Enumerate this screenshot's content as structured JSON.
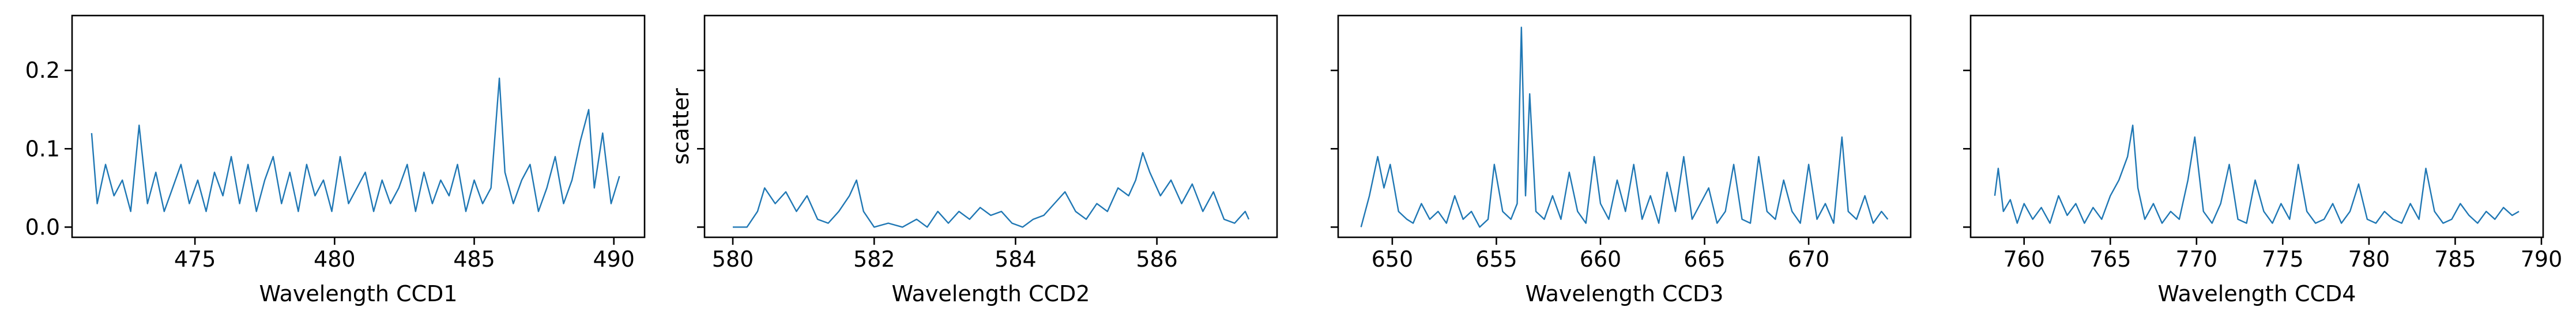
{
  "chart_data": [
    {
      "type": "line",
      "xlabel": "Wavelength CCD1",
      "ylabel": "",
      "xlim": [
        470.6,
        491.1
      ],
      "ylim": [
        -0.013,
        0.27
      ],
      "xticks": [
        475,
        480,
        485,
        490
      ],
      "yticks": [
        0.0,
        0.1,
        0.2
      ],
      "ytick_labels": [
        "0.0",
        "0.1",
        "0.2"
      ],
      "grid": false,
      "series": [
        {
          "color": "#1f77b4",
          "x": [
            471.3,
            471.5,
            471.8,
            472.1,
            472.4,
            472.7,
            473.0,
            473.3,
            473.6,
            473.9,
            474.2,
            474.5,
            474.8,
            475.1,
            475.4,
            475.7,
            476.0,
            476.3,
            476.6,
            476.9,
            477.2,
            477.5,
            477.8,
            478.1,
            478.4,
            478.7,
            479.0,
            479.3,
            479.6,
            479.9,
            480.2,
            480.5,
            480.8,
            481.1,
            481.4,
            481.7,
            482.0,
            482.3,
            482.6,
            482.9,
            483.2,
            483.5,
            483.8,
            484.1,
            484.4,
            484.7,
            485.0,
            485.3,
            485.6,
            485.9,
            486.1,
            486.4,
            486.7,
            487.0,
            487.3,
            487.6,
            487.9,
            488.2,
            488.5,
            488.8,
            489.1,
            489.3,
            489.6,
            489.9,
            490.2
          ],
          "y": [
            0.12,
            0.03,
            0.08,
            0.04,
            0.06,
            0.02,
            0.13,
            0.03,
            0.07,
            0.02,
            0.05,
            0.08,
            0.03,
            0.06,
            0.02,
            0.07,
            0.04,
            0.09,
            0.03,
            0.08,
            0.02,
            0.06,
            0.09,
            0.03,
            0.07,
            0.02,
            0.08,
            0.04,
            0.06,
            0.02,
            0.09,
            0.03,
            0.05,
            0.07,
            0.02,
            0.06,
            0.03,
            0.05,
            0.08,
            0.02,
            0.07,
            0.03,
            0.06,
            0.04,
            0.08,
            0.02,
            0.06,
            0.03,
            0.05,
            0.19,
            0.07,
            0.03,
            0.06,
            0.08,
            0.02,
            0.05,
            0.09,
            0.03,
            0.06,
            0.11,
            0.15,
            0.05,
            0.12,
            0.03,
            0.065
          ]
        }
      ]
    },
    {
      "type": "line",
      "xlabel": "Wavelength CCD2",
      "ylabel": "scatter",
      "xlim": [
        579.6,
        587.7
      ],
      "ylim": [
        -0.013,
        0.27
      ],
      "xticks": [
        580,
        582,
        584,
        586
      ],
      "yticks": [
        0.0,
        0.1,
        0.2
      ],
      "ytick_labels": [
        "",
        "",
        ""
      ],
      "grid": false,
      "series": [
        {
          "color": "#1f77b4",
          "x": [
            580.0,
            580.2,
            580.35,
            580.45,
            580.6,
            580.75,
            580.9,
            581.05,
            581.2,
            581.35,
            581.5,
            581.65,
            581.75,
            581.85,
            582.0,
            582.2,
            582.4,
            582.6,
            582.75,
            582.9,
            583.05,
            583.2,
            583.35,
            583.5,
            583.65,
            583.8,
            583.95,
            584.1,
            584.25,
            584.4,
            584.55,
            584.7,
            584.85,
            585.0,
            585.15,
            585.3,
            585.45,
            585.6,
            585.7,
            585.8,
            585.9,
            586.05,
            586.2,
            586.35,
            586.5,
            586.65,
            586.8,
            586.95,
            587.1,
            587.25,
            587.3
          ],
          "y": [
            0.0,
            0.0,
            0.02,
            0.05,
            0.03,
            0.045,
            0.02,
            0.04,
            0.01,
            0.005,
            0.02,
            0.04,
            0.06,
            0.02,
            0.0,
            0.005,
            0.0,
            0.01,
            0.0,
            0.02,
            0.005,
            0.02,
            0.01,
            0.025,
            0.015,
            0.02,
            0.005,
            0.0,
            0.01,
            0.015,
            0.03,
            0.045,
            0.02,
            0.01,
            0.03,
            0.02,
            0.05,
            0.04,
            0.06,
            0.095,
            0.07,
            0.04,
            0.06,
            0.03,
            0.055,
            0.02,
            0.045,
            0.01,
            0.005,
            0.02,
            0.01
          ]
        }
      ]
    },
    {
      "type": "line",
      "xlabel": "Wavelength CCD3",
      "ylabel": "",
      "xlim": [
        647.4,
        674.9
      ],
      "ylim": [
        -0.013,
        0.27
      ],
      "xticks": [
        650,
        655,
        660,
        665,
        670
      ],
      "yticks": [
        0.0,
        0.1,
        0.2
      ],
      "ytick_labels": [
        "",
        "",
        ""
      ],
      "grid": false,
      "series": [
        {
          "color": "#1f77b4",
          "x": [
            648.5,
            648.9,
            649.3,
            649.6,
            649.9,
            650.3,
            650.7,
            651.0,
            651.4,
            651.8,
            652.2,
            652.6,
            653.0,
            653.4,
            653.8,
            654.2,
            654.6,
            654.9,
            655.3,
            655.7,
            656.0,
            656.2,
            656.4,
            656.6,
            656.9,
            657.3,
            657.7,
            658.1,
            658.5,
            658.9,
            659.3,
            659.7,
            660.0,
            660.4,
            660.8,
            661.2,
            661.6,
            662.0,
            662.4,
            662.8,
            663.2,
            663.6,
            664.0,
            664.4,
            664.8,
            665.2,
            665.6,
            666.0,
            666.4,
            666.8,
            667.2,
            667.6,
            668.0,
            668.4,
            668.8,
            669.2,
            669.6,
            670.0,
            670.4,
            670.8,
            671.2,
            671.6,
            671.9,
            672.3,
            672.7,
            673.1,
            673.5,
            673.8
          ],
          "y": [
            0.0,
            0.04,
            0.09,
            0.05,
            0.08,
            0.02,
            0.01,
            0.005,
            0.03,
            0.01,
            0.02,
            0.005,
            0.04,
            0.01,
            0.02,
            0.0,
            0.01,
            0.08,
            0.02,
            0.01,
            0.03,
            0.255,
            0.04,
            0.17,
            0.02,
            0.01,
            0.04,
            0.01,
            0.07,
            0.02,
            0.005,
            0.09,
            0.03,
            0.01,
            0.06,
            0.02,
            0.08,
            0.01,
            0.04,
            0.005,
            0.07,
            0.02,
            0.09,
            0.01,
            0.03,
            0.05,
            0.005,
            0.02,
            0.08,
            0.01,
            0.005,
            0.09,
            0.02,
            0.01,
            0.06,
            0.02,
            0.005,
            0.08,
            0.01,
            0.03,
            0.005,
            0.115,
            0.02,
            0.01,
            0.04,
            0.005,
            0.02,
            0.01
          ]
        }
      ]
    },
    {
      "type": "line",
      "xlabel": "Wavelength CCD4",
      "ylabel": "",
      "xlim": [
        756.9,
        790.1
      ],
      "ylim": [
        -0.013,
        0.27
      ],
      "xticks": [
        760,
        765,
        770,
        775,
        780,
        785,
        790
      ],
      "yticks": [
        0.0,
        0.1,
        0.2
      ],
      "ytick_labels": [
        "",
        "",
        ""
      ],
      "grid": false,
      "series": [
        {
          "color": "#1f77b4",
          "x": [
            758.3,
            758.5,
            758.8,
            759.2,
            759.6,
            760.0,
            760.5,
            761.0,
            761.5,
            762.0,
            762.5,
            763.0,
            763.5,
            764.0,
            764.5,
            765.0,
            765.5,
            766.0,
            766.3,
            766.6,
            767.0,
            767.5,
            768.0,
            768.5,
            769.0,
            769.5,
            769.9,
            770.4,
            770.9,
            771.4,
            771.9,
            772.4,
            772.9,
            773.4,
            773.9,
            774.4,
            774.9,
            775.4,
            775.9,
            776.4,
            776.9,
            777.4,
            777.9,
            778.4,
            778.9,
            779.4,
            779.9,
            780.4,
            780.9,
            781.4,
            781.9,
            782.4,
            782.9,
            783.3,
            783.8,
            784.3,
            784.8,
            785.3,
            785.8,
            786.3,
            786.8,
            787.3,
            787.8,
            788.3,
            788.7
          ],
          "y": [
            0.04,
            0.075,
            0.02,
            0.035,
            0.005,
            0.03,
            0.01,
            0.025,
            0.005,
            0.04,
            0.015,
            0.03,
            0.005,
            0.025,
            0.01,
            0.04,
            0.06,
            0.09,
            0.13,
            0.05,
            0.01,
            0.03,
            0.005,
            0.02,
            0.01,
            0.06,
            0.115,
            0.02,
            0.005,
            0.03,
            0.08,
            0.01,
            0.005,
            0.06,
            0.02,
            0.005,
            0.03,
            0.01,
            0.08,
            0.02,
            0.005,
            0.01,
            0.03,
            0.005,
            0.02,
            0.055,
            0.01,
            0.005,
            0.02,
            0.01,
            0.005,
            0.03,
            0.01,
            0.075,
            0.02,
            0.005,
            0.01,
            0.03,
            0.015,
            0.005,
            0.02,
            0.01,
            0.025,
            0.015,
            0.02
          ]
        }
      ]
    }
  ]
}
